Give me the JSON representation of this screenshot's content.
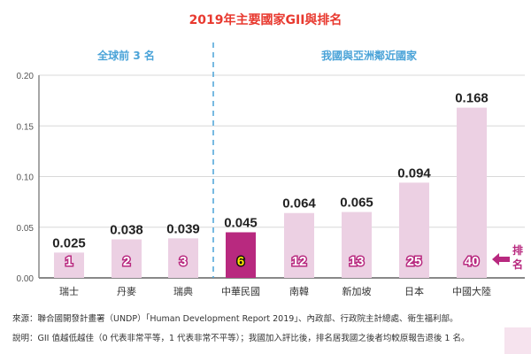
{
  "chart_data": {
    "type": "bar",
    "title": "2019年主要國家GII與排名",
    "groups": [
      {
        "label": "全球前 3 名",
        "categories": [
          "瑞士",
          "丹麥",
          "瑞典"
        ]
      },
      {
        "label": "我國與亞洲鄰近國家",
        "categories": [
          "中華民國",
          "南韓",
          "新加坡",
          "日本",
          "中國大陸"
        ]
      }
    ],
    "categories": [
      "瑞士",
      "丹麥",
      "瑞典",
      "中華民國",
      "南韓",
      "新加坡",
      "日本",
      "中國大陸"
    ],
    "values": [
      0.025,
      0.038,
      0.039,
      0.045,
      0.064,
      0.065,
      0.094,
      0.168
    ],
    "value_labels": [
      "0.025",
      "0.038",
      "0.039",
      "0.045",
      "0.064",
      "0.065",
      "0.094",
      "0.168"
    ],
    "ranks": [
      "1",
      "2",
      "3",
      "6",
      "12",
      "13",
      "25",
      "40"
    ],
    "highlight_index": 3,
    "rank_legend": "排名",
    "ylim": [
      0,
      0.2
    ],
    "yticks": [
      "0.00",
      "0.05",
      "0.10",
      "0.15",
      "0.20"
    ],
    "ytick_values": [
      0,
      0.05,
      0.1,
      0.15,
      0.2
    ],
    "grid": true,
    "colors": {
      "bar": "#ecd0e3",
      "highlight": "#b8297f",
      "rank_outline": "#b8297f",
      "title": "#e8392f",
      "section": "#4aa3d8"
    }
  },
  "notes": {
    "source": "來源：聯合國開發計畫署（UNDP）「Human Development Report 2019」、內政部、行政院主計總處、衛生福利部。",
    "explanation": "說明：GII 值越低越佳（0 代表非常平等，1 代表非常不平等）；我國加入評比後，排名居我國之後者均較原報告退後 1 名。"
  }
}
